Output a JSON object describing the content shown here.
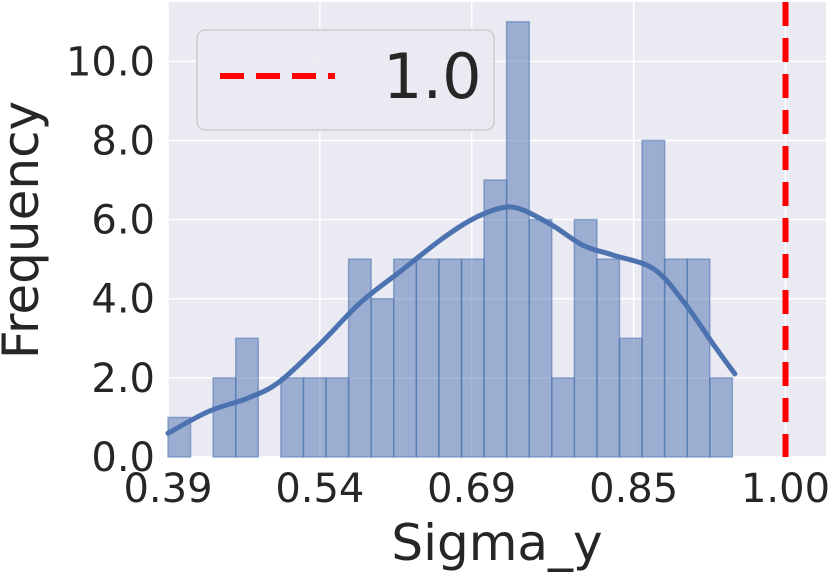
{
  "chart_data": {
    "type": "histogram",
    "xlabel": "Sigma_y",
    "ylabel": "Frequency",
    "xlim": [
      0.39,
      1.04
    ],
    "ylim": [
      0,
      11.5
    ],
    "x_ticks": [
      0.39,
      0.54,
      0.69,
      0.85,
      1.0
    ],
    "x_tick_labels": [
      "0.39",
      "0.54",
      "0.69",
      "0.85",
      "1.00"
    ],
    "y_ticks": [
      0,
      2,
      4,
      6,
      8,
      10
    ],
    "y_tick_labels": [
      "0.0",
      "2.0",
      "4.0",
      "6.0",
      "8.0",
      "10.0"
    ],
    "grid": true,
    "background": "#eaeaf2",
    "histogram": {
      "bin_start": 0.39,
      "bin_width": 0.0223,
      "counts": [
        1,
        0,
        2,
        3,
        0,
        2,
        2,
        2,
        5,
        4,
        5,
        5,
        5,
        5,
        7,
        11,
        6,
        2,
        6,
        5,
        3,
        8,
        5,
        5,
        2
      ],
      "color": "#4c72b0",
      "alpha": 0.5
    },
    "kde": {
      "color": "#4c72b0",
      "x": [
        0.39,
        0.43,
        0.47,
        0.5,
        0.54,
        0.58,
        0.62,
        0.66,
        0.69,
        0.72,
        0.74,
        0.77,
        0.8,
        0.83,
        0.87,
        0.9,
        0.93,
        0.95
      ],
      "y": [
        0.6,
        1.15,
        1.5,
        1.9,
        2.85,
        3.9,
        4.7,
        5.5,
        6.0,
        6.3,
        6.25,
        5.85,
        5.35,
        5.1,
        4.75,
        3.9,
        2.8,
        2.1
      ]
    },
    "reference_line": {
      "x": 1.0,
      "label": "1.0",
      "color": "#ff0000",
      "style": "dashed"
    },
    "legend": {
      "placement": "top-left",
      "entries": [
        {
          "label": "1.0",
          "color": "#ff0000",
          "style": "dashed"
        }
      ]
    }
  }
}
